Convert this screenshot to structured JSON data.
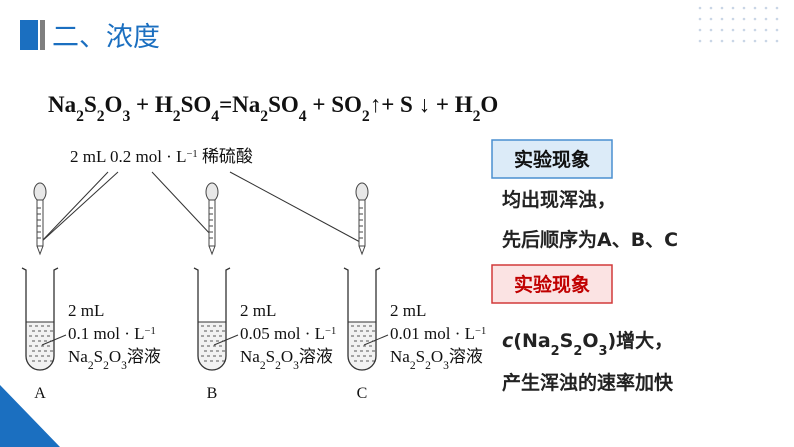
{
  "header": {
    "title": "二、浓度"
  },
  "equation": [
    {
      "text": "Na"
    },
    {
      "text": "2",
      "style": "sub"
    },
    {
      "text": "S"
    },
    {
      "text": "2",
      "style": "sub"
    },
    {
      "text": "O"
    },
    {
      "text": "3",
      "style": "sub"
    },
    {
      "text": " + H"
    },
    {
      "text": "2",
      "style": "sub"
    },
    {
      "text": "SO"
    },
    {
      "text": "4",
      "style": "sub"
    },
    {
      "text": "=Na"
    },
    {
      "text": "2",
      "style": "sub"
    },
    {
      "text": "SO"
    },
    {
      "text": "4",
      "style": "sub"
    },
    {
      "text": " + SO"
    },
    {
      "text": "2",
      "style": "sub"
    },
    {
      "text": "↑+ S ↓ + H"
    },
    {
      "text": "2",
      "style": "sub"
    },
    {
      "text": "O"
    }
  ],
  "reagent": [
    {
      "text": "2 mL 0.2 mol · L"
    },
    {
      "text": "−1",
      "style": "sup"
    },
    {
      "text": " 稀硫酸"
    }
  ],
  "tubes": [
    {
      "letter": "A",
      "lines": [
        [
          {
            "text": "2 mL"
          }
        ],
        [
          {
            "text": "0.1 mol · L"
          },
          {
            "text": "−1",
            "style": "sup"
          }
        ],
        [
          {
            "text": "Na"
          },
          {
            "text": "2",
            "style": "sub"
          },
          {
            "text": "S"
          },
          {
            "text": "2",
            "style": "sub"
          },
          {
            "text": "O"
          },
          {
            "text": "3",
            "style": "sub"
          },
          {
            "text": "溶液"
          }
        ]
      ]
    },
    {
      "letter": "B",
      "lines": [
        [
          {
            "text": "2 mL"
          }
        ],
        [
          {
            "text": "0.05 mol · L"
          },
          {
            "text": "−1",
            "style": "sup"
          }
        ],
        [
          {
            "text": "Na"
          },
          {
            "text": "2",
            "style": "sub"
          },
          {
            "text": "S"
          },
          {
            "text": "2",
            "style": "sub"
          },
          {
            "text": "O"
          },
          {
            "text": "3",
            "style": "sub"
          },
          {
            "text": "溶液"
          }
        ]
      ]
    },
    {
      "letter": "C",
      "lines": [
        [
          {
            "text": "2 mL"
          }
        ],
        [
          {
            "text": "0.01 mol · L"
          },
          {
            "text": "−1",
            "style": "sup"
          }
        ],
        [
          {
            "text": "Na"
          },
          {
            "text": "2",
            "style": "sub"
          },
          {
            "text": "S"
          },
          {
            "text": "2",
            "style": "sub"
          },
          {
            "text": "O"
          },
          {
            "text": "3",
            "style": "sub"
          },
          {
            "text": "溶液"
          }
        ]
      ]
    }
  ],
  "observations": [
    {
      "heading": "实验现象",
      "lines": [
        [
          {
            "text": "均出现浑浊，"
          }
        ],
        [
          {
            "text": "先后顺序为A、B、C"
          }
        ]
      ]
    },
    {
      "heading": "实验现象",
      "lines": [
        [
          {
            "text": "c",
            "style": "italic"
          },
          {
            "text": "(Na"
          },
          {
            "text": "2",
            "style": "sub"
          },
          {
            "text": "S"
          },
          {
            "text": "2",
            "style": "sub"
          },
          {
            "text": "O"
          },
          {
            "text": "3",
            "style": "sub"
          },
          {
            "text": ")增大，"
          }
        ],
        [
          {
            "text": "产生浑浊的速率加快"
          }
        ]
      ]
    }
  ]
}
